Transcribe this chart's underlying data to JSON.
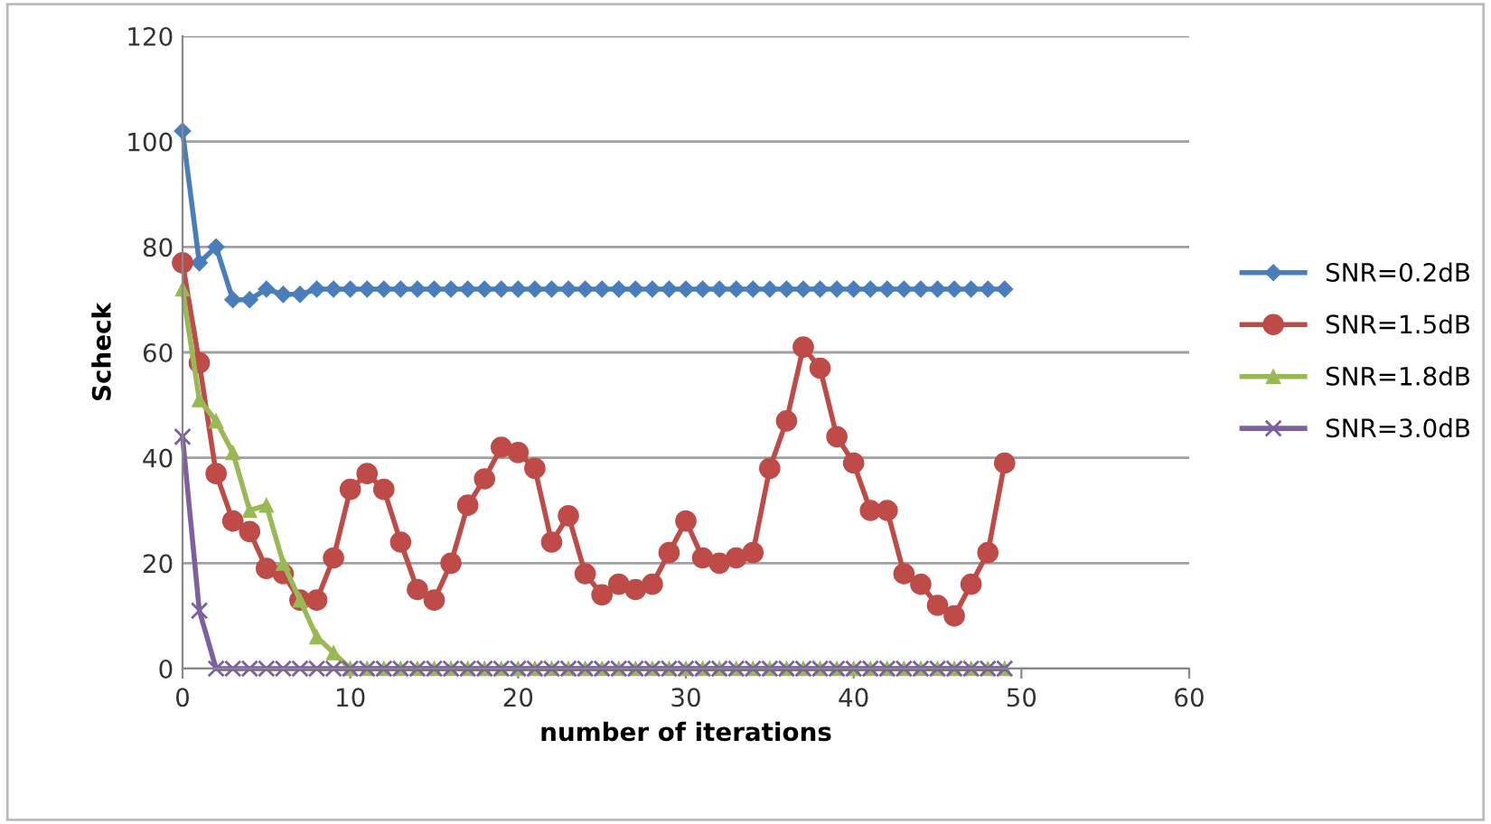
{
  "chart_data": {
    "type": "line",
    "xlabel": "number of iterations",
    "ylabel": "Scheck",
    "x": [
      0,
      1,
      2,
      3,
      4,
      5,
      6,
      7,
      8,
      9,
      10,
      11,
      12,
      13,
      14,
      15,
      16,
      17,
      18,
      19,
      20,
      21,
      22,
      23,
      24,
      25,
      26,
      27,
      28,
      29,
      30,
      31,
      32,
      33,
      34,
      35,
      36,
      37,
      38,
      39,
      40,
      41,
      42,
      43,
      44,
      45,
      46,
      47,
      48,
      49
    ],
    "series": [
      {
        "name": "SNR=0.2dB",
        "color": "#4a7ebb",
        "marker": "diamond",
        "values": [
          102,
          77,
          80,
          70,
          70,
          72,
          71,
          71,
          72,
          72,
          72,
          72,
          72,
          72,
          72,
          72,
          72,
          72,
          72,
          72,
          72,
          72,
          72,
          72,
          72,
          72,
          72,
          72,
          72,
          72,
          72,
          72,
          72,
          72,
          72,
          72,
          72,
          72,
          72,
          72,
          72,
          72,
          72,
          72,
          72,
          72,
          72,
          72,
          72,
          72
        ]
      },
      {
        "name": "SNR=1.5dB",
        "color": "#be4b48",
        "marker": "circle",
        "values": [
          77,
          58,
          37,
          28,
          26,
          19,
          18,
          13,
          13,
          21,
          34,
          37,
          34,
          24,
          15,
          13,
          20,
          31,
          36,
          42,
          41,
          38,
          24,
          29,
          18,
          14,
          16,
          15,
          16,
          22,
          28,
          21,
          20,
          21,
          22,
          38,
          47,
          61,
          57,
          44,
          39,
          30,
          30,
          18,
          16,
          12,
          10,
          16,
          22,
          39
        ]
      },
      {
        "name": "SNR=1.8dB",
        "color": "#98b954",
        "marker": "triangle",
        "values": [
          72,
          51,
          47,
          41,
          30,
          31,
          20,
          13,
          6,
          3,
          0,
          0,
          0,
          0,
          0,
          0,
          0,
          0,
          0,
          0,
          0,
          0,
          0,
          0,
          0,
          0,
          0,
          0,
          0,
          0,
          0,
          0,
          0,
          0,
          0,
          0,
          0,
          0,
          0,
          0,
          0,
          0,
          0,
          0,
          0,
          0,
          0,
          0,
          0,
          0
        ]
      },
      {
        "name": "SNR=3.0dB",
        "color": "#7d60a0",
        "marker": "cross",
        "values": [
          44,
          11,
          0,
          0,
          0,
          0,
          0,
          0,
          0,
          0,
          0,
          0,
          0,
          0,
          0,
          0,
          0,
          0,
          0,
          0,
          0,
          0,
          0,
          0,
          0,
          0,
          0,
          0,
          0,
          0,
          0,
          0,
          0,
          0,
          0,
          0,
          0,
          0,
          0,
          0,
          0,
          0,
          0,
          0,
          0,
          0,
          0,
          0,
          0,
          0
        ]
      }
    ],
    "xlim": [
      0,
      60
    ],
    "xticks": [
      0,
      10,
      20,
      30,
      40,
      50,
      60
    ],
    "ylim": [
      0,
      120
    ],
    "yticks": [
      0,
      20,
      40,
      60,
      80,
      100,
      120
    ],
    "grid": "y",
    "legend": "right",
    "line_style": "solid"
  }
}
